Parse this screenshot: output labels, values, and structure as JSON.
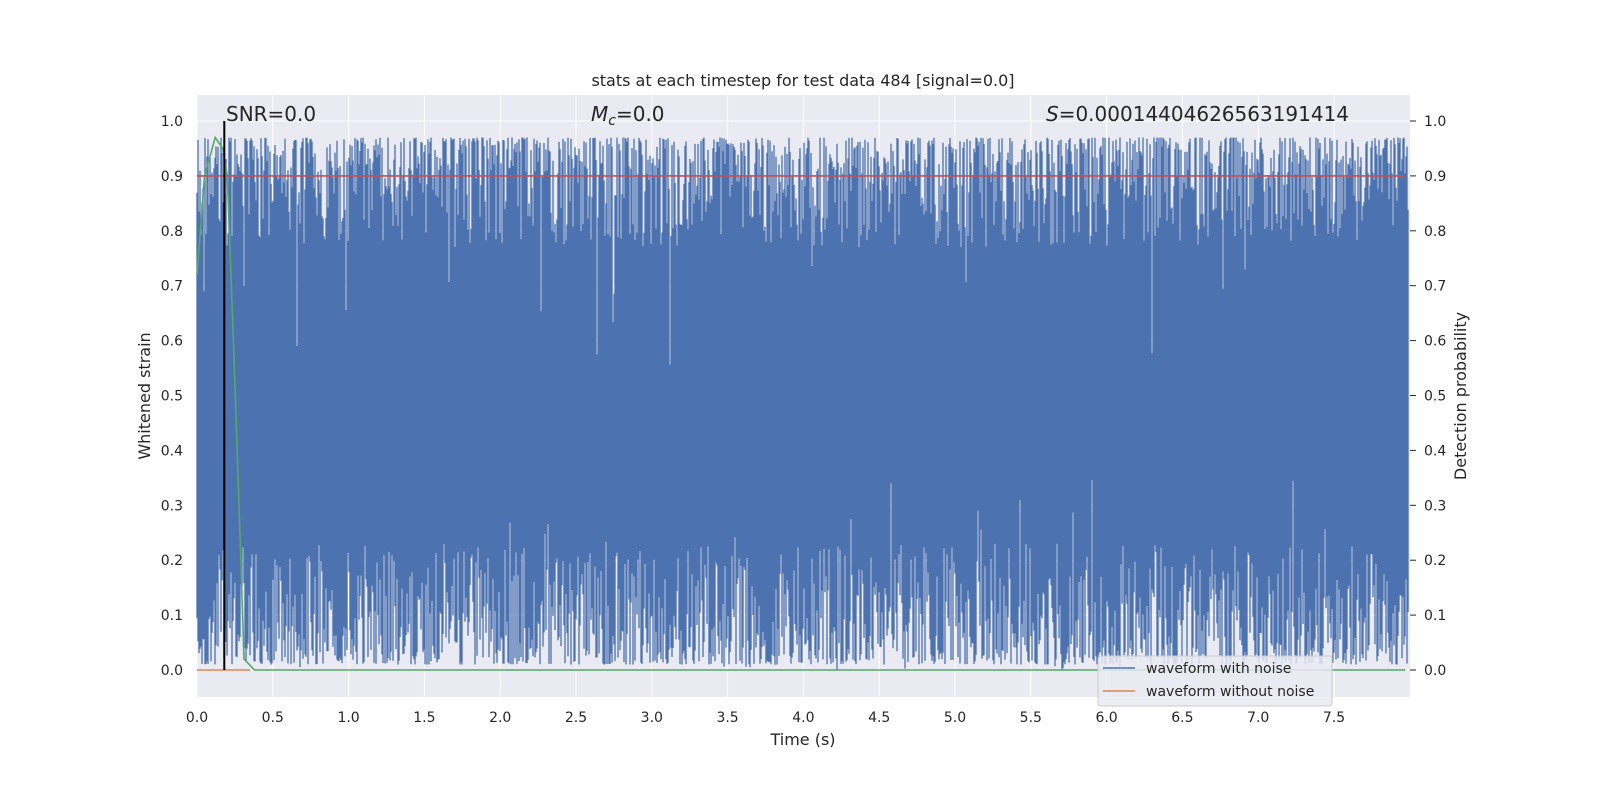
{
  "chart_data": {
    "type": "line",
    "title": "stats at each timestep for test data 484 [signal=0.0]",
    "xlabel": "Time (s)",
    "ylabel": "Whitened strain",
    "y2label": "Detection probability",
    "xlim": [
      0.0,
      8.0
    ],
    "ylim": [
      -0.05,
      1.05
    ],
    "x_ticks": [
      0.0,
      0.5,
      1.0,
      1.5,
      2.0,
      2.5,
      3.0,
      3.5,
      4.0,
      4.5,
      5.0,
      5.5,
      6.0,
      6.5,
      7.0,
      7.5
    ],
    "x_tick_labels": [
      "0.0",
      "0.5",
      "1.0",
      "1.5",
      "2.0",
      "2.5",
      "3.0",
      "3.5",
      "4.0",
      "4.5",
      "5.0",
      "5.5",
      "6.0",
      "6.5",
      "7.0",
      "7.5"
    ],
    "y_ticks": [
      0.0,
      0.1,
      0.2,
      0.3,
      0.4,
      0.5,
      0.6,
      0.7,
      0.8,
      0.9,
      1.0
    ],
    "y_tick_labels": [
      "0.0",
      "0.1",
      "0.2",
      "0.3",
      "0.4",
      "0.5",
      "0.6",
      "0.7",
      "0.8",
      "0.9",
      "1.0"
    ],
    "grid": true,
    "legend_position": "lower-right",
    "annotations": {
      "snr": "SNR=0.0",
      "mc_symbol": "M",
      "mc_sub": "c",
      "mc_value": "=0.0",
      "s_symbol": "S",
      "s_value": "=0.00014404626563191414"
    },
    "series": [
      {
        "name": "waveform with noise",
        "color": "#4c72b0",
        "style": "dense-noise",
        "approx_band": [
          0.05,
          0.97
        ],
        "approx_extent": [
          0.0,
          1.0
        ]
      },
      {
        "name": "waveform without noise",
        "color": "#dd8452",
        "x": [
          0.0,
          0.35
        ],
        "y": [
          0.0,
          0.0
        ]
      },
      {
        "color": "#55a868",
        "x": [
          0.0,
          0.05,
          0.12,
          0.17,
          0.2,
          0.24,
          0.28,
          0.31,
          0.38,
          7.97
        ],
        "y": [
          0.72,
          0.9,
          0.97,
          0.95,
          0.9,
          0.6,
          0.28,
          0.02,
          0.0,
          0.0
        ]
      },
      {
        "color": "#c44e52",
        "x": [
          0.0,
          7.97
        ],
        "y": [
          0.9,
          0.9
        ]
      },
      {
        "color": "#000000",
        "x": [
          0.18,
          0.18
        ],
        "y": [
          0.0,
          1.0
        ]
      }
    ]
  }
}
